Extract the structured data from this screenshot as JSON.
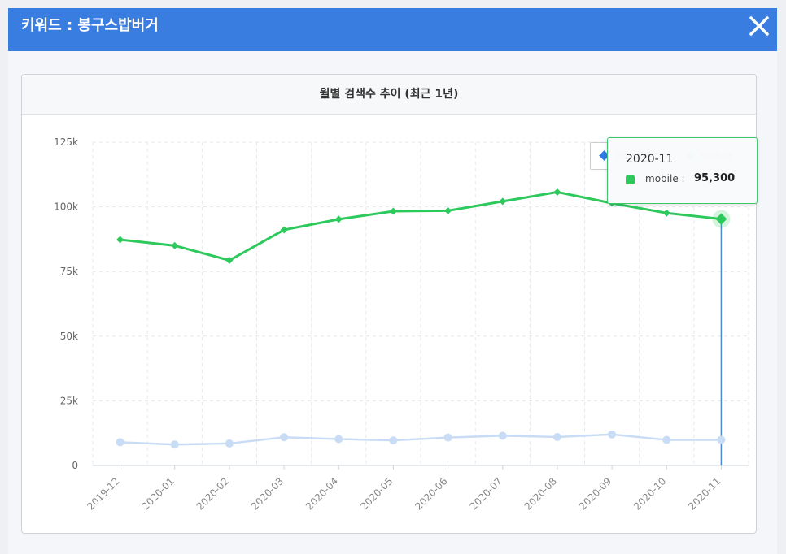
{
  "header": {
    "title": "키워드 : 봉구스밥버거"
  },
  "panel": {
    "title": "월별 검색수 추이 (최근 1년)"
  },
  "legend": [
    {
      "label": "desktop",
      "color": "#2f7be3"
    },
    {
      "label": "mobile",
      "color": "#2ec95c"
    }
  ],
  "tooltip": {
    "title": "2020-11",
    "label": "mobile",
    "separator": ":",
    "value": "95,300"
  },
  "chart_data": {
    "type": "line",
    "categories": [
      "2019-12",
      "2020-01",
      "2020-02",
      "2020-03",
      "2020-04",
      "2020-05",
      "2020-06",
      "2020-07",
      "2020-08",
      "2020-09",
      "2020-10",
      "2020-11"
    ],
    "series": [
      {
        "name": "mobile",
        "color": "#2ec95c",
        "values": [
          87300,
          85000,
          79300,
          91100,
          95200,
          98300,
          98500,
          102100,
          105700,
          101400,
          97600,
          95300
        ]
      },
      {
        "name": "desktop",
        "color": "#c9dcf5",
        "values": [
          9000,
          8100,
          8500,
          10900,
          10200,
          9700,
          10800,
          11500,
          11000,
          12000,
          9900,
          9900
        ]
      }
    ],
    "y_ticks": [
      "0",
      "25k",
      "50k",
      "75k",
      "100k",
      "125k"
    ],
    "ylim": [
      0,
      125000
    ],
    "grid": true,
    "legend_position": "top-right",
    "highlight_category": "2020-11"
  }
}
